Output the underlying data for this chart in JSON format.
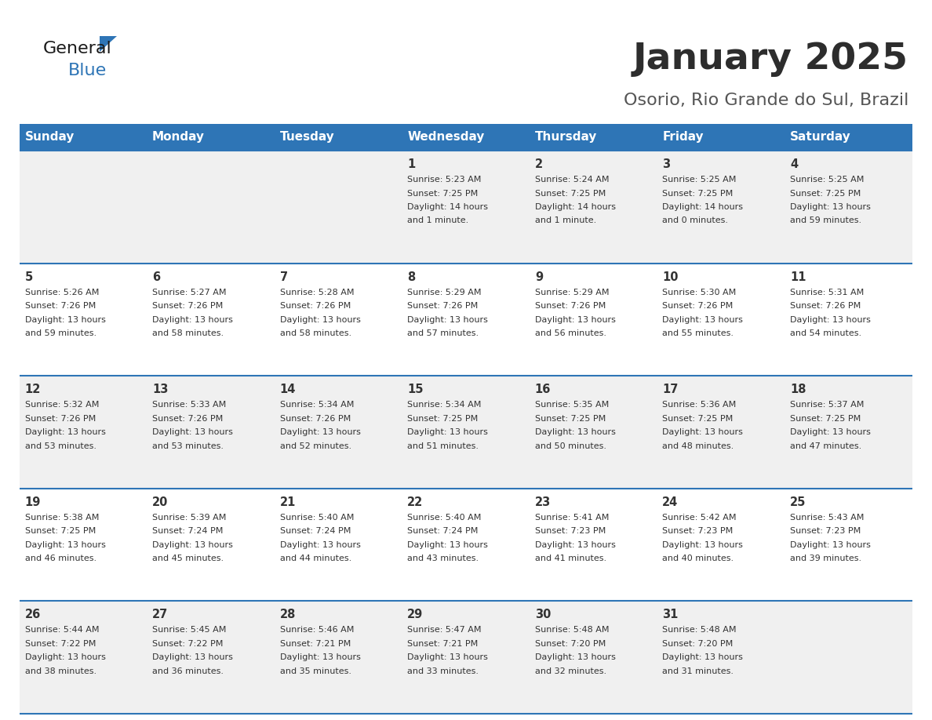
{
  "title": "January 2025",
  "subtitle": "Osorio, Rio Grande do Sul, Brazil",
  "days_of_week": [
    "Sunday",
    "Monday",
    "Tuesday",
    "Wednesday",
    "Thursday",
    "Friday",
    "Saturday"
  ],
  "header_bg": "#2E75B6",
  "header_text": "#FFFFFF",
  "row_bg_odd": "#F0F0F0",
  "row_bg_even": "#FFFFFF",
  "day_num_color": "#333333",
  "info_text_color": "#333333",
  "divider_color": "#2E75B6",
  "title_color": "#2d2d2d",
  "subtitle_color": "#555555",
  "logo_general_color": "#1a1a1a",
  "logo_blue_color": "#2E75B6",
  "calendar_data": [
    [
      null,
      null,
      null,
      {
        "day": 1,
        "sunrise": "5:23 AM",
        "sunset": "7:25 PM",
        "daylight": "14 hours and 1 minute."
      },
      {
        "day": 2,
        "sunrise": "5:24 AM",
        "sunset": "7:25 PM",
        "daylight": "14 hours and 1 minute."
      },
      {
        "day": 3,
        "sunrise": "5:25 AM",
        "sunset": "7:25 PM",
        "daylight": "14 hours and 0 minutes."
      },
      {
        "day": 4,
        "sunrise": "5:25 AM",
        "sunset": "7:25 PM",
        "daylight": "13 hours and 59 minutes."
      }
    ],
    [
      {
        "day": 5,
        "sunrise": "5:26 AM",
        "sunset": "7:26 PM",
        "daylight": "13 hours and 59 minutes."
      },
      {
        "day": 6,
        "sunrise": "5:27 AM",
        "sunset": "7:26 PM",
        "daylight": "13 hours and 58 minutes."
      },
      {
        "day": 7,
        "sunrise": "5:28 AM",
        "sunset": "7:26 PM",
        "daylight": "13 hours and 58 minutes."
      },
      {
        "day": 8,
        "sunrise": "5:29 AM",
        "sunset": "7:26 PM",
        "daylight": "13 hours and 57 minutes."
      },
      {
        "day": 9,
        "sunrise": "5:29 AM",
        "sunset": "7:26 PM",
        "daylight": "13 hours and 56 minutes."
      },
      {
        "day": 10,
        "sunrise": "5:30 AM",
        "sunset": "7:26 PM",
        "daylight": "13 hours and 55 minutes."
      },
      {
        "day": 11,
        "sunrise": "5:31 AM",
        "sunset": "7:26 PM",
        "daylight": "13 hours and 54 minutes."
      }
    ],
    [
      {
        "day": 12,
        "sunrise": "5:32 AM",
        "sunset": "7:26 PM",
        "daylight": "13 hours and 53 minutes."
      },
      {
        "day": 13,
        "sunrise": "5:33 AM",
        "sunset": "7:26 PM",
        "daylight": "13 hours and 53 minutes."
      },
      {
        "day": 14,
        "sunrise": "5:34 AM",
        "sunset": "7:26 PM",
        "daylight": "13 hours and 52 minutes."
      },
      {
        "day": 15,
        "sunrise": "5:34 AM",
        "sunset": "7:25 PM",
        "daylight": "13 hours and 51 minutes."
      },
      {
        "day": 16,
        "sunrise": "5:35 AM",
        "sunset": "7:25 PM",
        "daylight": "13 hours and 50 minutes."
      },
      {
        "day": 17,
        "sunrise": "5:36 AM",
        "sunset": "7:25 PM",
        "daylight": "13 hours and 48 minutes."
      },
      {
        "day": 18,
        "sunrise": "5:37 AM",
        "sunset": "7:25 PM",
        "daylight": "13 hours and 47 minutes."
      }
    ],
    [
      {
        "day": 19,
        "sunrise": "5:38 AM",
        "sunset": "7:25 PM",
        "daylight": "13 hours and 46 minutes."
      },
      {
        "day": 20,
        "sunrise": "5:39 AM",
        "sunset": "7:24 PM",
        "daylight": "13 hours and 45 minutes."
      },
      {
        "day": 21,
        "sunrise": "5:40 AM",
        "sunset": "7:24 PM",
        "daylight": "13 hours and 44 minutes."
      },
      {
        "day": 22,
        "sunrise": "5:40 AM",
        "sunset": "7:24 PM",
        "daylight": "13 hours and 43 minutes."
      },
      {
        "day": 23,
        "sunrise": "5:41 AM",
        "sunset": "7:23 PM",
        "daylight": "13 hours and 41 minutes."
      },
      {
        "day": 24,
        "sunrise": "5:42 AM",
        "sunset": "7:23 PM",
        "daylight": "13 hours and 40 minutes."
      },
      {
        "day": 25,
        "sunrise": "5:43 AM",
        "sunset": "7:23 PM",
        "daylight": "13 hours and 39 minutes."
      }
    ],
    [
      {
        "day": 26,
        "sunrise": "5:44 AM",
        "sunset": "7:22 PM",
        "daylight": "13 hours and 38 minutes."
      },
      {
        "day": 27,
        "sunrise": "5:45 AM",
        "sunset": "7:22 PM",
        "daylight": "13 hours and 36 minutes."
      },
      {
        "day": 28,
        "sunrise": "5:46 AM",
        "sunset": "7:21 PM",
        "daylight": "13 hours and 35 minutes."
      },
      {
        "day": 29,
        "sunrise": "5:47 AM",
        "sunset": "7:21 PM",
        "daylight": "13 hours and 33 minutes."
      },
      {
        "day": 30,
        "sunrise": "5:48 AM",
        "sunset": "7:20 PM",
        "daylight": "13 hours and 32 minutes."
      },
      {
        "day": 31,
        "sunrise": "5:48 AM",
        "sunset": "7:20 PM",
        "daylight": "13 hours and 31 minutes."
      },
      null
    ]
  ]
}
